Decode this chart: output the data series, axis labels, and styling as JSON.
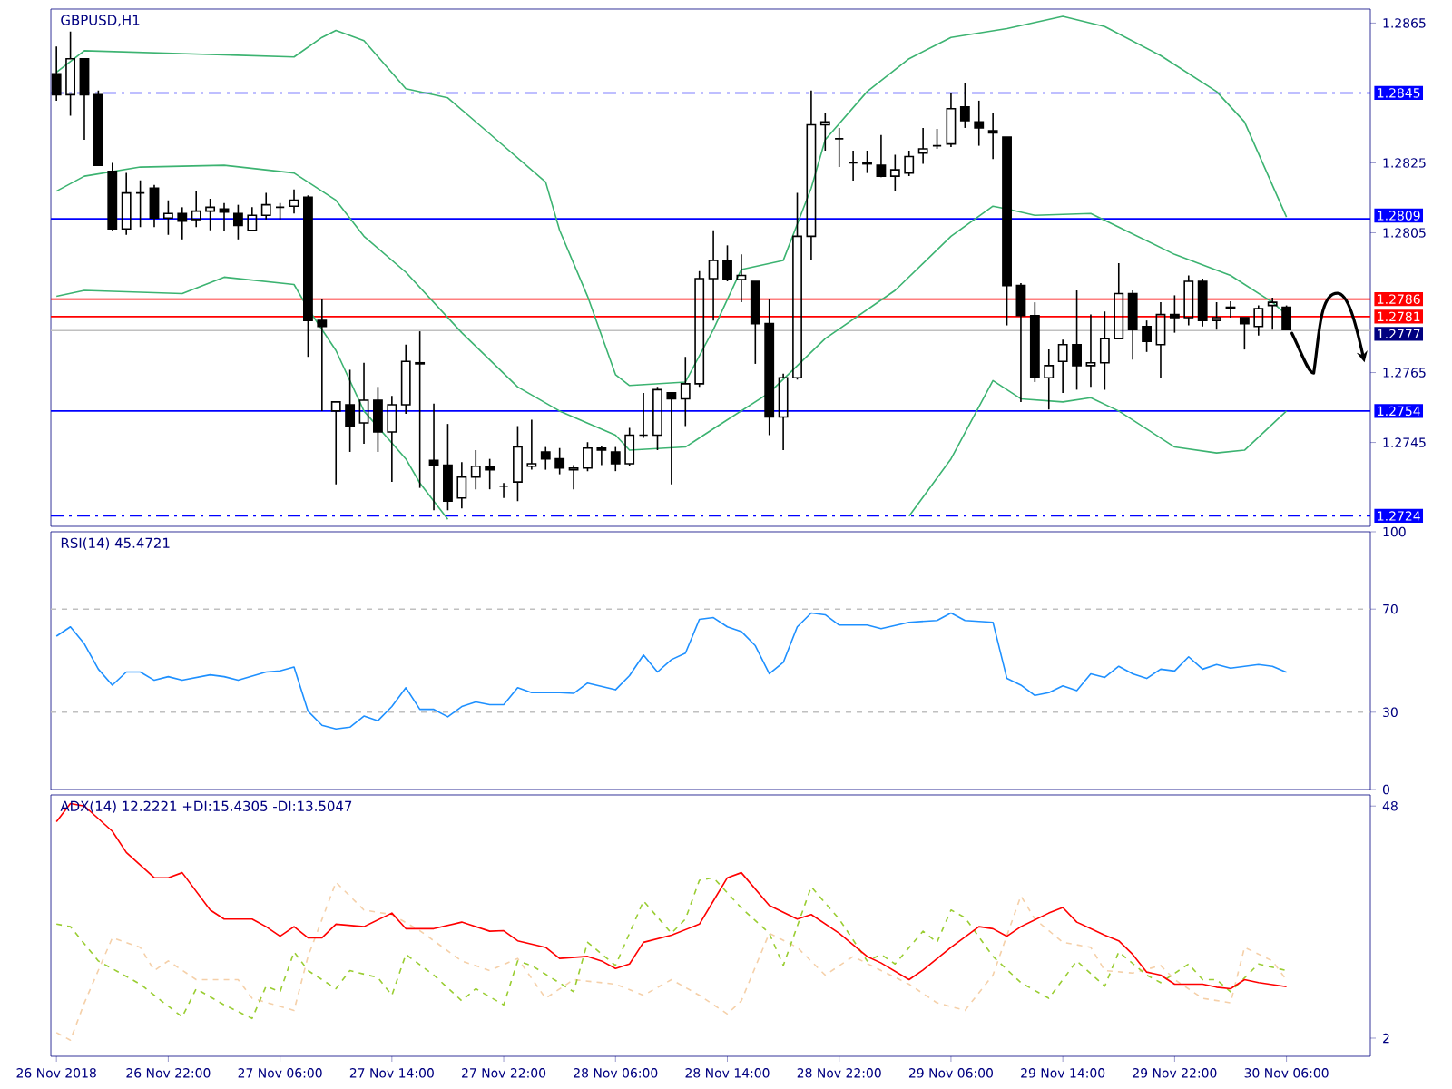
{
  "chart_data": [
    {
      "type": "candlestick",
      "title": "GBPUSD,H1",
      "color": "#000000",
      "tick_labels": "y",
      "xlim": [
        "2018-11-26T13:36",
        "2018-11-30T12:00"
      ],
      "ylim": [
        1.2721,
        1.2869
      ],
      "yticks": [
        1.2745,
        1.2765,
        1.2805,
        1.2825,
        1.2865
      ],
      "x": [
        "2018-11-26T14:00",
        "2018-11-26T15:00",
        "2018-11-26T16:00",
        "2018-11-26T17:00",
        "2018-11-26T18:00",
        "2018-11-26T19:00",
        "2018-11-26T20:00",
        "2018-11-26T21:00",
        "2018-11-26T22:00",
        "2018-11-26T23:00",
        "2018-11-27T00:00",
        "2018-11-27T01:00",
        "2018-11-27T02:00",
        "2018-11-27T03:00",
        "2018-11-27T04:00",
        "2018-11-27T05:00",
        "2018-11-27T06:00",
        "2018-11-27T07:00",
        "2018-11-27T08:00",
        "2018-11-27T09:00",
        "2018-11-27T10:00",
        "2018-11-27T11:00",
        "2018-11-27T12:00",
        "2018-11-27T13:00",
        "2018-11-27T14:00",
        "2018-11-27T15:00",
        "2018-11-27T16:00",
        "2018-11-27T17:00",
        "2018-11-27T18:00",
        "2018-11-27T19:00",
        "2018-11-27T20:00",
        "2018-11-27T21:00",
        "2018-11-27T22:00",
        "2018-11-27T23:00",
        "2018-11-28T00:00",
        "2018-11-28T01:00",
        "2018-11-28T02:00",
        "2018-11-28T03:00",
        "2018-11-28T04:00",
        "2018-11-28T05:00",
        "2018-11-28T06:00",
        "2018-11-28T07:00",
        "2018-11-28T08:00",
        "2018-11-28T09:00",
        "2018-11-28T10:00",
        "2018-11-28T11:00",
        "2018-11-28T12:00",
        "2018-11-28T13:00",
        "2018-11-28T14:00",
        "2018-11-28T15:00",
        "2018-11-28T16:00",
        "2018-11-28T17:00",
        "2018-11-28T18:00",
        "2018-11-28T19:00",
        "2018-11-28T20:00",
        "2018-11-28T21:00",
        "2018-11-28T22:00",
        "2018-11-28T23:00",
        "2018-11-29T00:00",
        "2018-11-29T01:00",
        "2018-11-29T02:00",
        "2018-11-29T03:00",
        "2018-11-29T04:00",
        "2018-11-29T05:00",
        "2018-11-29T06:00",
        "2018-11-29T07:00",
        "2018-11-29T08:00",
        "2018-11-29T09:00",
        "2018-11-29T10:00",
        "2018-11-29T11:00",
        "2018-11-29T12:00",
        "2018-11-29T13:00",
        "2018-11-29T14:00",
        "2018-11-29T15:00",
        "2018-11-29T16:00",
        "2018-11-29T17:00",
        "2018-11-29T18:00",
        "2018-11-29T19:00",
        "2018-11-29T20:00",
        "2018-11-29T21:00",
        "2018-11-29T22:00",
        "2018-11-29T23:00",
        "2018-11-30T00:00",
        "2018-11-30T01:00",
        "2018-11-30T02:00",
        "2018-11-30T03:00",
        "2018-11-30T04:00",
        "2018-11-30T05:00",
        "2018-11-30T06:00"
      ],
      "ohlc": [
        [
          1.28505,
          1.28583,
          1.28428,
          1.28445
        ],
        [
          1.28445,
          1.28626,
          1.28385,
          1.28548
        ],
        [
          1.28548,
          1.28548,
          1.28316,
          1.28445
        ],
        [
          1.28445,
          1.28457,
          1.28243,
          1.28243
        ],
        [
          1.28226,
          1.2825,
          1.28057,
          1.28061
        ],
        [
          1.28061,
          1.28221,
          1.28044,
          1.28164
        ],
        [
          1.28164,
          1.282,
          1.28066,
          1.28164
        ],
        [
          1.28178,
          1.28187,
          1.28066,
          1.28092
        ],
        [
          1.28092,
          1.28143,
          1.28044,
          1.28105
        ],
        [
          1.28105,
          1.28123,
          1.28031,
          1.28083
        ],
        [
          1.28088,
          1.28169,
          1.28066,
          1.28112
        ],
        [
          1.28112,
          1.28147,
          1.28057,
          1.28123
        ],
        [
          1.28118,
          1.28135,
          1.28054,
          1.28109
        ],
        [
          1.28105,
          1.2813,
          1.28031,
          1.28071
        ],
        [
          1.28057,
          1.28123,
          1.28054,
          1.281
        ],
        [
          1.281,
          1.28164,
          1.28088,
          1.2813
        ],
        [
          1.28123,
          1.28135,
          1.28088,
          1.28123
        ],
        [
          1.28126,
          1.28174,
          1.28105,
          1.28143
        ],
        [
          1.28152,
          1.28157,
          1.27695,
          1.27799
        ],
        [
          1.27799,
          1.27859,
          1.2754,
          1.27782
        ],
        [
          1.2754,
          1.27566,
          1.2733,
          1.27566
        ],
        [
          1.27558,
          1.27658,
          1.27423,
          1.27497
        ],
        [
          1.27506,
          1.27678,
          1.27446,
          1.27571
        ],
        [
          1.27571,
          1.27609,
          1.27423,
          1.2748
        ],
        [
          1.2748,
          1.27583,
          1.27337,
          1.27558
        ],
        [
          1.27558,
          1.2773,
          1.27532,
          1.27682
        ],
        [
          1.27678,
          1.27768,
          1.2732,
          1.27675
        ],
        [
          1.27399,
          1.27561,
          1.27256,
          1.27385
        ],
        [
          1.27385,
          1.27503,
          1.27256,
          1.27282
        ],
        [
          1.27291,
          1.27394,
          1.27261,
          1.27351
        ],
        [
          1.27351,
          1.27428,
          1.27316,
          1.27382
        ],
        [
          1.27382,
          1.27403,
          1.27316,
          1.27372
        ],
        [
          1.27325,
          1.27334,
          1.27291,
          1.27325
        ],
        [
          1.27337,
          1.27497,
          1.27282,
          1.27437
        ],
        [
          1.27382,
          1.27515,
          1.27372,
          1.27389
        ],
        [
          1.27423,
          1.27437,
          1.27372,
          1.27403
        ],
        [
          1.27403,
          1.27434,
          1.27359,
          1.27377
        ],
        [
          1.27372,
          1.27385,
          1.27316,
          1.27377
        ],
        [
          1.27377,
          1.27451,
          1.27368,
          1.27434
        ],
        [
          1.27434,
          1.2744,
          1.27385,
          1.27428
        ],
        [
          1.27423,
          1.27437,
          1.27368,
          1.27389
        ],
        [
          1.27389,
          1.27492,
          1.27382,
          1.27471
        ],
        [
          1.27471,
          1.27592,
          1.27463,
          1.27471
        ],
        [
          1.27471,
          1.27609,
          1.27428,
          1.27601
        ],
        [
          1.27592,
          1.27592,
          1.2733,
          1.27575
        ],
        [
          1.27575,
          1.27695,
          1.27497,
          1.27618
        ],
        [
          1.27618,
          1.2794,
          1.27609,
          1.27919
        ],
        [
          1.27919,
          1.28057,
          1.27799,
          1.27971
        ],
        [
          1.27971,
          1.28014,
          1.27911,
          1.27916
        ],
        [
          1.27916,
          1.27988,
          1.27851,
          1.27928
        ],
        [
          1.27911,
          1.27911,
          1.27675,
          1.2779
        ],
        [
          1.2779,
          1.27859,
          1.27471,
          1.27523
        ],
        [
          1.27523,
          1.27647,
          1.27428,
          1.27635
        ],
        [
          1.27635,
          1.28164,
          1.2763,
          1.2804
        ],
        [
          1.2804,
          1.28457,
          1.27971,
          1.28359
        ],
        [
          1.28359,
          1.28393,
          1.28285,
          1.28367
        ],
        [
          1.28319,
          1.2835,
          1.28238,
          1.28319
        ],
        [
          1.2825,
          1.28285,
          1.28199,
          1.2825
        ],
        [
          1.2825,
          1.28285,
          1.28221,
          1.28247
        ],
        [
          1.28243,
          1.2833,
          1.28209,
          1.28212
        ],
        [
          1.28212,
          1.28273,
          1.28169,
          1.2823
        ],
        [
          1.28221,
          1.28285,
          1.28212,
          1.28268
        ],
        [
          1.28278,
          1.2835,
          1.28247,
          1.2829
        ],
        [
          1.28299,
          1.28347,
          1.2829,
          1.28299
        ],
        [
          1.28304,
          1.2845,
          1.28295,
          1.28405
        ],
        [
          1.2841,
          1.28479,
          1.2835,
          1.28371
        ],
        [
          1.28367,
          1.28428,
          1.28299,
          1.2835
        ],
        [
          1.28342,
          1.28393,
          1.28261,
          1.28336
        ],
        [
          1.28324,
          1.28324,
          1.27785,
          1.27899
        ],
        [
          1.27899,
          1.27906,
          1.27566,
          1.27813
        ],
        [
          1.27813,
          1.27851,
          1.27623,
          1.27635
        ],
        [
          1.27635,
          1.27716,
          1.27544,
          1.2767
        ],
        [
          1.27682,
          1.27744,
          1.27592,
          1.2773
        ],
        [
          1.2773,
          1.27885,
          1.27601,
          1.2767
        ],
        [
          1.2767,
          1.27816,
          1.27609,
          1.27678
        ],
        [
          1.27678,
          1.27825,
          1.27601,
          1.27747
        ],
        [
          1.27747,
          1.27963,
          1.27747,
          1.27876
        ],
        [
          1.27876,
          1.27885,
          1.27687,
          1.27773
        ],
        [
          1.27782,
          1.27799,
          1.27709,
          1.27739
        ],
        [
          1.2773,
          1.27851,
          1.27635,
          1.27816
        ],
        [
          1.27816,
          1.27871,
          1.27764,
          1.27807
        ],
        [
          1.27807,
          1.27928,
          1.27785,
          1.27911
        ],
        [
          1.27911,
          1.27919,
          1.27782,
          1.27799
        ],
        [
          1.27799,
          1.27851,
          1.27773,
          1.27807
        ],
        [
          1.27837,
          1.27854,
          1.27807,
          1.27833
        ],
        [
          1.27807,
          1.27807,
          1.27716,
          1.2779
        ],
        [
          1.27782,
          1.27842,
          1.27756,
          1.27833
        ],
        [
          1.27842,
          1.27864,
          1.27773,
          1.27851
        ],
        [
          1.27837,
          1.27842,
          1.27773,
          1.27773
        ]
      ],
      "series": [
        {
          "type": "line",
          "color": "#3cb371",
          "x": [
            "2018-11-26T14:00",
            "2018-11-26T16:00",
            "2018-11-27T07:00",
            "2018-11-27T09:00",
            "2018-11-27T10:00",
            "2018-11-27T12:00",
            "2018-11-27T15:00",
            "2018-11-27T18:00",
            "2018-11-27T21:00",
            "2018-11-28T01:00",
            "2018-11-28T02:00",
            "2018-11-28T04:00",
            "2018-11-28T06:00",
            "2018-11-28T07:00",
            "2018-11-28T11:00",
            "2018-11-28T13:00",
            "2018-11-28T15:00",
            "2018-11-28T18:00",
            "2018-11-28T20:00",
            "2018-11-28T21:00",
            "2018-11-29T00:00",
            "2018-11-29T03:00",
            "2018-11-29T06:00",
            "2018-11-29T10:00",
            "2018-11-29T14:00",
            "2018-11-29T17:00",
            "2018-11-29T21:00",
            "2018-11-30T01:00",
            "2018-11-30T03:00",
            "2018-11-30T06:00"
          ],
          "values": [
            1.28509,
            1.28571,
            1.28553,
            1.28609,
            1.28629,
            1.286,
            1.28462,
            1.28436,
            1.28333,
            1.28195,
            1.28057,
            1.27868,
            1.27644,
            1.27613,
            1.27623,
            1.27773,
            1.27945,
            1.27971,
            1.28178,
            1.28316,
            1.28454,
            1.28548,
            1.28609,
            1.28634,
            1.28669,
            1.2864,
            1.28557,
            1.28454,
            1.28367,
            1.28095
          ]
        },
        {
          "type": "line",
          "color": "#3cb371",
          "x": [
            "2018-11-26T14:00",
            "2018-11-26T16:00",
            "2018-11-26T20:00",
            "2018-11-27T02:00",
            "2018-11-27T07:00",
            "2018-11-27T10:00",
            "2018-11-27T12:00",
            "2018-11-27T15:00",
            "2018-11-27T19:00",
            "2018-11-27T23:00",
            "2018-11-28T02:00",
            "2018-11-28T06:00",
            "2018-11-28T07:00",
            "2018-11-28T11:00",
            "2018-11-28T13:00",
            "2018-11-28T17:00",
            "2018-11-28T21:00",
            "2018-11-29T02:00",
            "2018-11-29T06:00",
            "2018-11-29T09:00",
            "2018-11-29T10:00",
            "2018-11-29T12:00",
            "2018-11-29T16:00",
            "2018-11-29T18:00",
            "2018-11-29T22:00",
            "2018-11-30T02:00",
            "2018-11-30T05:00",
            "2018-11-30T06:00"
          ],
          "values": [
            1.28169,
            1.28212,
            1.28238,
            1.28243,
            1.28221,
            1.28143,
            1.2804,
            1.27937,
            1.27764,
            1.27609,
            1.2754,
            1.27471,
            1.27428,
            1.27437,
            1.27489,
            1.27592,
            1.27747,
            1.27885,
            1.2804,
            1.28126,
            1.28118,
            1.281,
            1.28105,
            1.28066,
            1.27988,
            1.27928,
            1.27851,
            1.27816
          ]
        },
        {
          "type": "line",
          "color": "#3cb371",
          "x": [
            "2018-11-26T14:00",
            "2018-11-26T16:00",
            "2018-11-26T23:00",
            "2018-11-27T02:00",
            "2018-11-27T07:00",
            "2018-11-27T08:00",
            "2018-11-27T10:00",
            "2018-11-27T12:00",
            "2018-11-27T15:00",
            "2018-11-27T16:00",
            "2018-11-27T18:00",
            "2018-11-27T19:00",
            "2018-11-29T02:00",
            "2018-11-29T03:00",
            "2018-11-29T06:00",
            "2018-11-29T09:00",
            "2018-11-29T11:00",
            "2018-11-29T14:00",
            "2018-11-29T16:00",
            "2018-11-29T18:00",
            "2018-11-29T22:00",
            "2018-11-30T01:00",
            "2018-11-30T03:00",
            "2018-11-30T06:00"
          ],
          "values": [
            1.27868,
            1.27885,
            1.27876,
            1.27923,
            1.27902,
            1.27833,
            1.27713,
            1.2754,
            1.27403,
            1.27334,
            1.2723,
            null,
            null,
            1.27239,
            1.27403,
            1.27627,
            1.27575,
            1.27566,
            1.27578,
            1.2754,
            1.27437,
            1.2742,
            1.27428,
            1.2754
          ]
        }
      ],
      "ref_lines": [
        {
          "axis": "y",
          "value": 1.2845,
          "label": "1.2845",
          "color": "#0000ff",
          "line_style": "dashdot"
        },
        {
          "axis": "y",
          "value": 1.2809,
          "label": "1.2809",
          "color": "#0000ff",
          "line_style": "solid"
        },
        {
          "axis": "y",
          "value": 1.2786,
          "label": "1.2786",
          "color": "#ff0000",
          "line_style": "solid"
        },
        {
          "axis": "y",
          "value": 1.2781,
          "label": "1.2781",
          "color": "#ff0000",
          "line_style": "solid"
        },
        {
          "axis": "y",
          "value": 1.2777,
          "label": "1.2777",
          "color": "#c0c0c0",
          "line_style": "solid"
        },
        {
          "axis": "y",
          "value": 1.2754,
          "label": "1.2754",
          "color": "#0000ff",
          "line_style": "solid"
        },
        {
          "axis": "y",
          "value": 1.2724,
          "label": "1.2724",
          "color": "#0000ff",
          "line_style": "dashdot"
        }
      ]
    },
    {
      "type": "line",
      "title": "RSI(14) 45.4721",
      "tick_labels": "y",
      "xlim": [
        "2018-11-26T13:36",
        "2018-11-30T12:00"
      ],
      "ylim": [
        0,
        100
      ],
      "yticks": [
        0,
        30,
        70,
        100
      ],
      "series": [
        {
          "color": "#1e90ff",
          "x": [
            "2018-11-26T14:00",
            "2018-11-26T15:00",
            "2018-11-26T16:00",
            "2018-11-26T17:00",
            "2018-11-26T18:00",
            "2018-11-26T19:00",
            "2018-11-26T20:00",
            "2018-11-26T21:00",
            "2018-11-26T22:00",
            "2018-11-26T23:00",
            "2018-11-27T01:00",
            "2018-11-27T02:00",
            "2018-11-27T03:00",
            "2018-11-27T05:00",
            "2018-11-27T06:00",
            "2018-11-27T07:00",
            "2018-11-27T08:00",
            "2018-11-27T09:00",
            "2018-11-27T10:00",
            "2018-11-27T11:00",
            "2018-11-27T12:00",
            "2018-11-27T13:00",
            "2018-11-27T14:00",
            "2018-11-27T15:00",
            "2018-11-27T16:00",
            "2018-11-27T17:00",
            "2018-11-27T18:00",
            "2018-11-27T19:00",
            "2018-11-27T20:00",
            "2018-11-27T21:00",
            "2018-11-27T22:00",
            "2018-11-27T23:00",
            "2018-11-28T00:00",
            "2018-11-28T02:00",
            "2018-11-28T03:00",
            "2018-11-28T04:00",
            "2018-11-28T06:00",
            "2018-11-28T07:00",
            "2018-11-28T08:00",
            "2018-11-28T09:00",
            "2018-11-28T10:00",
            "2018-11-28T11:00",
            "2018-11-28T12:00",
            "2018-11-28T13:00",
            "2018-11-28T14:00",
            "2018-11-28T15:00",
            "2018-11-28T16:00",
            "2018-11-28T17:00",
            "2018-11-28T18:00",
            "2018-11-28T19:00",
            "2018-11-28T20:00",
            "2018-11-28T21:00",
            "2018-11-28T22:00",
            "2018-11-29T00:00",
            "2018-11-29T01:00",
            "2018-11-29T03:00",
            "2018-11-29T05:00",
            "2018-11-29T06:00",
            "2018-11-29T07:00",
            "2018-11-29T09:00",
            "2018-11-29T10:00",
            "2018-11-29T11:00",
            "2018-11-29T12:00",
            "2018-11-29T13:00",
            "2018-11-29T14:00",
            "2018-11-29T15:00",
            "2018-11-29T16:00",
            "2018-11-29T17:00",
            "2018-11-29T18:00",
            "2018-11-29T19:00",
            "2018-11-29T20:00",
            "2018-11-29T21:00",
            "2018-11-29T22:00",
            "2018-11-29T23:00",
            "2018-11-30T00:00",
            "2018-11-30T01:00",
            "2018-11-30T02:00",
            "2018-11-30T04:00",
            "2018-11-30T05:00",
            "2018-11-30T06:00"
          ],
          "values": [
            59.5,
            63.1,
            56.5,
            46.7,
            40.5,
            45.6,
            45.6,
            42.4,
            43.8,
            42.4,
            44.5,
            43.8,
            42.4,
            45.6,
            46.0,
            47.5,
            30.4,
            24.9,
            23.5,
            24.2,
            28.5,
            26.7,
            32.2,
            39.5,
            31.1,
            31.1,
            28.2,
            32.2,
            34.0,
            32.9,
            32.9,
            39.5,
            37.6,
            37.6,
            37.3,
            41.3,
            38.7,
            44.2,
            52.2,
            45.6,
            50.4,
            52.9,
            66.0,
            66.7,
            63.1,
            61.3,
            55.8,
            44.9,
            49.3,
            63.1,
            68.5,
            67.8,
            63.8,
            63.8,
            62.4,
            64.9,
            65.6,
            68.5,
            65.6,
            64.9,
            43.1,
            40.5,
            36.5,
            37.6,
            40.2,
            38.4,
            44.9,
            43.5,
            47.8,
            44.9,
            43.1,
            46.7,
            46.0,
            51.5,
            46.7,
            48.5,
            47.1,
            48.5,
            47.8,
            45.5
          ]
        }
      ],
      "ref_lines": [
        {
          "axis": "y",
          "value": 70,
          "color": "#c0c0c0",
          "line_style": "dashed"
        },
        {
          "axis": "y",
          "value": 30,
          "color": "#c0c0c0",
          "line_style": "dashed"
        }
      ]
    },
    {
      "type": "line",
      "title": "ADX(14) 12.2221 +DI:15.4305 -DI:13.5047",
      "xlim": [
        "2018-11-26T13:36",
        "2018-11-30T12:00"
      ],
      "ylim": [
        -1.6,
        50.2
      ],
      "yticks": [
        2,
        48
      ],
      "xticks": [
        {
          "value": "2018-11-26T14:00",
          "label": "26 Nov 2018"
        },
        {
          "value": "2018-11-26T22:00",
          "label": "26 Nov 22:00"
        },
        {
          "value": "2018-11-27T06:00",
          "label": "27 Nov 06:00"
        },
        {
          "value": "2018-11-27T14:00",
          "label": "27 Nov 14:00"
        },
        {
          "value": "2018-11-27T22:00",
          "label": "27 Nov 22:00"
        },
        {
          "value": "2018-11-28T06:00",
          "label": "28 Nov 06:00"
        },
        {
          "value": "2018-11-28T14:00",
          "label": "28 Nov 14:00"
        },
        {
          "value": "2018-11-28T22:00",
          "label": "28 Nov 22:00"
        },
        {
          "value": "2018-11-29T06:00",
          "label": "29 Nov 06:00"
        },
        {
          "value": "2018-11-29T14:00",
          "label": "29 Nov 14:00"
        },
        {
          "value": "2018-11-29T22:00",
          "label": "29 Nov 22:00"
        },
        {
          "value": "2018-11-30T06:00",
          "label": "30 Nov 06:00"
        }
      ],
      "series": [
        {
          "color": "#f5d0a9",
          "line_style": "dashed",
          "x": [
            "2018-11-26T14:00",
            "2018-11-26T15:00",
            "2018-11-26T16:00",
            "2018-11-26T18:00",
            "2018-11-26T20:00",
            "2018-11-26T21:00",
            "2018-11-26T22:00",
            "2018-11-27T00:00",
            "2018-11-27T03:00",
            "2018-11-27T04:00",
            "2018-11-27T07:00",
            "2018-11-27T08:00",
            "2018-11-27T10:00",
            "2018-11-27T12:00",
            "2018-11-27T14:00",
            "2018-11-27T16:00",
            "2018-11-27T19:00",
            "2018-11-27T21:00",
            "2018-11-27T23:00",
            "2018-11-28T01:00",
            "2018-11-28T03:00",
            "2018-11-28T06:00",
            "2018-11-28T08:00",
            "2018-11-28T10:00",
            "2018-11-28T12:00",
            "2018-11-28T14:00",
            "2018-11-28T15:00",
            "2018-11-28T17:00",
            "2018-11-28T19:00",
            "2018-11-28T21:00",
            "2018-11-28T23:00",
            "2018-11-29T01:00",
            "2018-11-29T03:00",
            "2018-11-29T05:00",
            "2018-11-29T07:00",
            "2018-11-29T09:00",
            "2018-11-29T11:00",
            "2018-11-29T12:00",
            "2018-11-29T14:00",
            "2018-11-29T16:00",
            "2018-11-29T17:00",
            "2018-11-29T19:00",
            "2018-11-29T21:00",
            "2018-11-29T22:00",
            "2018-11-30T00:00",
            "2018-11-30T02:00",
            "2018-11-30T03:00",
            "2018-11-30T05:00",
            "2018-11-30T06:00"
          ],
          "values": [
            3.1,
            1.6,
            9.0,
            21.9,
            20.0,
            15.4,
            17.3,
            13.6,
            13.6,
            9.9,
            7.5,
            18.2,
            32.9,
            27.4,
            26.5,
            23.3,
            17.3,
            15.4,
            17.8,
            9.9,
            13.6,
            12.7,
            10.5,
            13.6,
            10.5,
            6.8,
            9.4,
            22.8,
            20.0,
            14.5,
            18.2,
            15.4,
            12.7,
            9.0,
            7.5,
            14.5,
            30.2,
            25.6,
            21.0,
            20.0,
            15.4,
            14.9,
            16.4,
            13.6,
            9.9,
            9.0,
            20.0,
            17.3,
            13.5
          ]
        },
        {
          "color": "#9acd32",
          "line_style": "dashed",
          "x": [
            "2018-11-26T14:00",
            "2018-11-26T15:00",
            "2018-11-26T17:00",
            "2018-11-26T20:00",
            "2018-11-26T21:00",
            "2018-11-26T23:00",
            "2018-11-27T00:00",
            "2018-11-27T02:00",
            "2018-11-27T04:00",
            "2018-11-27T05:00",
            "2018-11-27T06:00",
            "2018-11-27T07:00",
            "2018-11-27T08:00",
            "2018-11-27T10:00",
            "2018-11-27T11:00",
            "2018-11-27T13:00",
            "2018-11-27T14:00",
            "2018-11-27T15:00",
            "2018-11-27T17:00",
            "2018-11-27T19:00",
            "2018-11-27T20:00",
            "2018-11-27T22:00",
            "2018-11-27T23:00",
            "2018-11-28T00:00",
            "2018-11-28T03:00",
            "2018-11-28T04:00",
            "2018-11-28T06:00",
            "2018-11-28T08:00",
            "2018-11-28T10:00",
            "2018-11-28T11:00",
            "2018-11-28T12:00",
            "2018-11-28T13:00",
            "2018-11-28T15:00",
            "2018-11-28T17:00",
            "2018-11-28T18:00",
            "2018-11-28T20:00",
            "2018-11-28T22:00",
            "2018-11-29T00:00",
            "2018-11-29T01:00",
            "2018-11-29T02:00",
            "2018-11-29T04:00",
            "2018-11-29T05:00",
            "2018-11-29T06:00",
            "2018-11-29T07:00",
            "2018-11-29T09:00",
            "2018-11-29T11:00",
            "2018-11-29T13:00",
            "2018-11-29T15:00",
            "2018-11-29T17:00",
            "2018-11-29T18:00",
            "2018-11-29T20:00",
            "2018-11-29T21:00",
            "2018-11-29T23:00",
            "2018-11-30T00:00",
            "2018-11-30T01:00",
            "2018-11-30T02:00",
            "2018-11-30T04:00",
            "2018-11-30T06:00"
          ],
          "values": [
            24.6,
            24.1,
            17.3,
            12.7,
            10.5,
            6.2,
            11.8,
            8.6,
            5.9,
            12.3,
            11.2,
            19.1,
            15.4,
            11.8,
            15.4,
            14.0,
            10.5,
            18.6,
            14.5,
            9.4,
            11.8,
            8.6,
            17.3,
            16.4,
            11.2,
            21.0,
            16.4,
            29.2,
            22.8,
            25.6,
            33.3,
            33.8,
            27.8,
            22.8,
            16.4,
            32.0,
            25.6,
            17.3,
            18.6,
            16.7,
            23.2,
            21.0,
            27.4,
            25.9,
            18.2,
            13.0,
            9.9,
            17.3,
            12.3,
            19.1,
            14.5,
            13.0,
            16.7,
            13.6,
            13.6,
            11.2,
            16.7,
            15.4
          ]
        },
        {
          "color": "#ff0000",
          "line_style": "solid",
          "x": [
            "2018-11-26T14:00",
            "2018-11-26T15:00",
            "2018-11-26T16:00",
            "2018-11-26T18:00",
            "2018-11-26T19:00",
            "2018-11-26T21:00",
            "2018-11-26T22:00",
            "2018-11-26T23:00",
            "2018-11-27T01:00",
            "2018-11-27T02:00",
            "2018-11-27T04:00",
            "2018-11-27T05:00",
            "2018-11-27T06:00",
            "2018-11-27T07:00",
            "2018-11-27T08:00",
            "2018-11-27T09:00",
            "2018-11-27T10:00",
            "2018-11-27T12:00",
            "2018-11-27T14:00",
            "2018-11-27T15:00",
            "2018-11-27T17:00",
            "2018-11-27T19:00",
            "2018-11-27T21:00",
            "2018-11-27T22:00",
            "2018-11-27T23:00",
            "2018-11-28T01:00",
            "2018-11-28T02:00",
            "2018-11-28T04:00",
            "2018-11-28T05:00",
            "2018-11-28T06:00",
            "2018-11-28T07:00",
            "2018-11-28T08:00",
            "2018-11-28T10:00",
            "2018-11-28T12:00",
            "2018-11-28T13:00",
            "2018-11-28T14:00",
            "2018-11-28T15:00",
            "2018-11-28T17:00",
            "2018-11-28T19:00",
            "2018-11-28T20:00",
            "2018-11-28T22:00",
            "2018-11-29T00:00",
            "2018-11-29T01:00",
            "2018-11-29T03:00",
            "2018-11-29T04:00",
            "2018-11-29T06:00",
            "2018-11-29T08:00",
            "2018-11-29T09:00",
            "2018-11-29T10:00",
            "2018-11-29T11:00",
            "2018-11-29T13:00",
            "2018-11-29T14:00",
            "2018-11-29T15:00",
            "2018-11-29T17:00",
            "2018-11-29T18:00",
            "2018-11-29T19:00",
            "2018-11-29T20:00",
            "2018-11-29T21:00",
            "2018-11-29T22:00",
            "2018-11-30T00:00",
            "2018-11-30T01:00",
            "2018-11-30T02:00",
            "2018-11-30T03:00",
            "2018-11-30T04:00",
            "2018-11-30T06:00"
          ],
          "values": [
            44.9,
            48.5,
            48.0,
            43.0,
            38.8,
            33.8,
            33.8,
            34.8,
            27.4,
            25.6,
            25.6,
            24.1,
            22.2,
            24.1,
            21.9,
            21.9,
            24.6,
            24.1,
            26.8,
            23.7,
            23.7,
            25.0,
            23.2,
            23.3,
            21.3,
            20.0,
            17.8,
            18.2,
            17.3,
            15.8,
            16.7,
            21.0,
            22.4,
            24.6,
            29.2,
            33.8,
            34.8,
            28.3,
            25.6,
            26.5,
            22.8,
            18.2,
            16.9,
            13.6,
            15.5,
            20.0,
            24.1,
            23.7,
            22.2,
            24.1,
            26.8,
            27.9,
            25.0,
            22.4,
            21.3,
            18.6,
            15.1,
            14.5,
            12.7,
            12.7,
            12.1,
            11.8,
            13.6,
            13.0,
            12.2
          ]
        }
      ]
    }
  ]
}
